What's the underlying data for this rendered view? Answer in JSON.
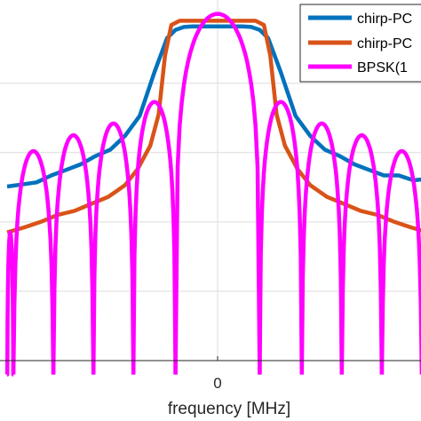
{
  "chart_data": {
    "type": "line",
    "xlabel": "frequency  [MHz]",
    "ylabel": "",
    "x_ticks": [
      {
        "value": 0,
        "label": "0"
      }
    ],
    "xlim": [
      -10,
      10
    ],
    "ylim": [
      -50,
      2
    ],
    "grid": true,
    "legend_position": "top-right",
    "series": [
      {
        "name": "chirp-PC",
        "color": "#0072BD",
        "x": [
          -10,
          -9.3,
          -8.6,
          -7.9,
          -7.2,
          -6.5,
          -5.8,
          -5.1,
          -4.4,
          -3.7,
          -3.0,
          -2.4,
          -2.0,
          -1.6,
          -1.2,
          0,
          1.2,
          1.6,
          2.0,
          2.4,
          3.0,
          3.7,
          4.4,
          5.1,
          5.8,
          6.5,
          7.2,
          7.9,
          8.6,
          9.3,
          10
        ],
        "y": [
          -24.9,
          -24.6,
          -24.3,
          -23.3,
          -22.5,
          -21.7,
          -20.5,
          -19.6,
          -17.6,
          -14.7,
          -8.4,
          -3.5,
          -2.3,
          -1.9,
          -1.8,
          -1.8,
          -1.8,
          -1.9,
          -2.3,
          -3.5,
          -8.4,
          -14.7,
          -17.6,
          -19.6,
          -20.5,
          -21.7,
          -22.5,
          -23.3,
          -23.3,
          -24.0,
          -23.8
        ]
      },
      {
        "name": "chirp-PC",
        "color": "#D95319",
        "x": [
          -10,
          -9.2,
          -8.4,
          -7.6,
          -6.8,
          -6.0,
          -5.2,
          -4.4,
          -3.8,
          -3.2,
          -2.8,
          -2.5,
          -2.2,
          -1.8,
          0,
          1.8,
          2.2,
          2.5,
          2.8,
          3.2,
          3.8,
          4.4,
          5.2,
          6.0,
          6.8,
          7.6,
          8.4,
          9.2,
          10
        ],
        "y": [
          -31.5,
          -30.8,
          -30.0,
          -29.0,
          -28.4,
          -27.4,
          -26.4,
          -24.7,
          -22.4,
          -19.0,
          -14.5,
          -6.0,
          -1.6,
          -1.0,
          -1.0,
          -1.0,
          -1.6,
          -6.0,
          -14.5,
          -19.0,
          -22.4,
          -24.7,
          -26.4,
          -27.4,
          -28.4,
          -29.0,
          -30.0,
          -30.8,
          -31.5
        ]
      },
      {
        "name": "BPSK(1",
        "color": "#FF00FF",
        "main_lobe": {
          "center": 0,
          "half_width": 2.0,
          "peak": 0
        },
        "side_lobes": [
          {
            "from": -10.0,
            "to": -9.7,
            "peak": -31.5
          },
          {
            "from": -9.7,
            "to": -7.8,
            "peak": -19.8
          },
          {
            "from": -7.8,
            "to": -5.9,
            "peak": -17.5
          },
          {
            "from": -5.9,
            "to": -4.0,
            "peak": -15.8
          },
          {
            "from": -4.0,
            "to": -2.0,
            "peak": -12.7
          },
          {
            "from": 2.0,
            "to": 4.0,
            "peak": -12.7
          },
          {
            "from": 4.0,
            "to": 5.9,
            "peak": -15.8
          },
          {
            "from": 5.9,
            "to": 7.8,
            "peak": -17.5
          },
          {
            "from": 7.8,
            "to": 9.7,
            "peak": -19.8
          },
          {
            "from": 9.7,
            "to": 10.0,
            "peak": -31.5
          }
        ]
      }
    ]
  }
}
